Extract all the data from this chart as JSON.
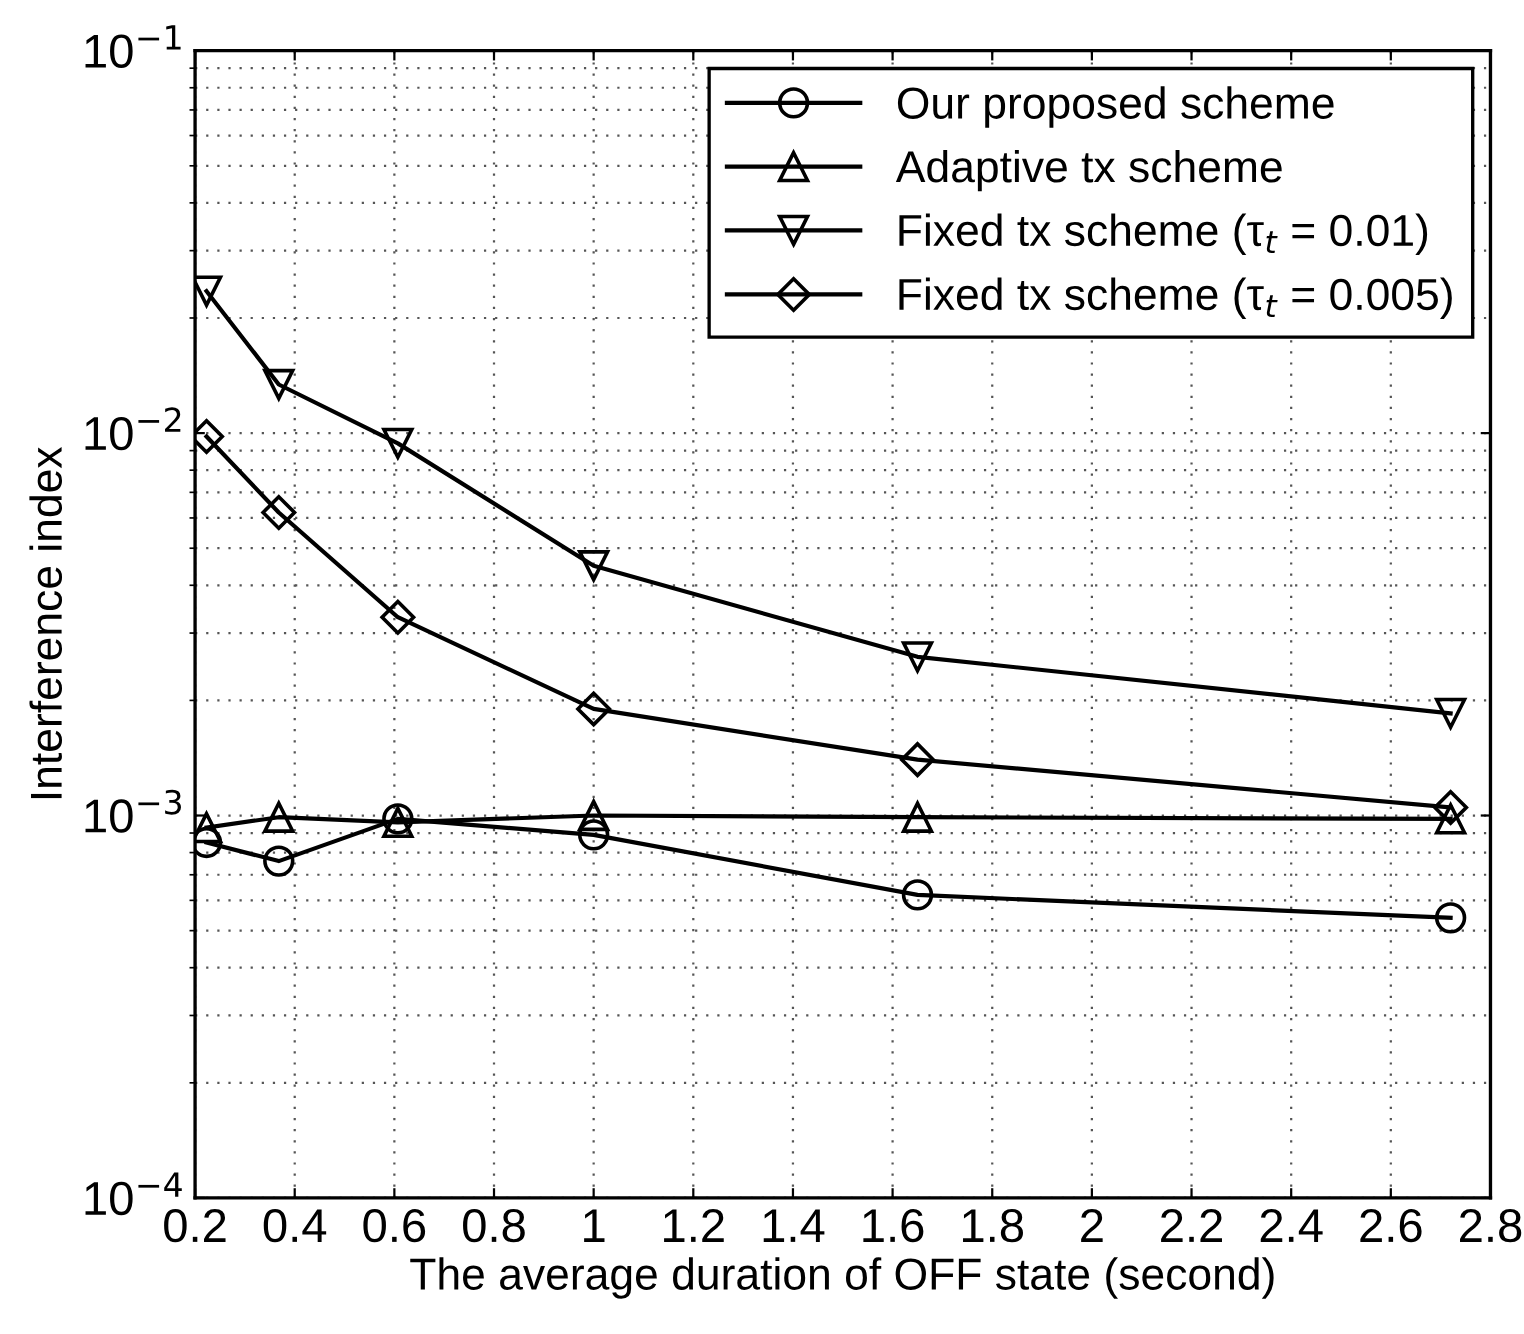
{
  "chart_data": {
    "type": "line",
    "xlabel": "The average duration of OFF state (second)",
    "ylabel": "Interference index",
    "x": [
      0.223,
      0.368,
      0.607,
      1.0,
      1.65,
      2.72
    ],
    "series": [
      {
        "name": "Our proposed scheme",
        "color": "#000000",
        "marker": "circle",
        "values": [
          0.00085,
          0.00076,
          0.00098,
          0.00089,
          0.00062,
          0.00054
        ]
      },
      {
        "name": "Adaptive tx scheme",
        "color": "#000000",
        "marker": "triangle",
        "values": [
          0.00093,
          0.00099,
          0.00096,
          0.001,
          0.00099,
          0.00098
        ]
      },
      {
        "name": "Fixed tx scheme (τ$_{t}$ = 0.01)",
        "color": "#000000",
        "marker": "triangle_down",
        "values": [
          0.0235,
          0.0134,
          0.0094,
          0.0045,
          0.0026,
          0.00185
        ]
      },
      {
        "name": "Fixed tx scheme (τ$_{t}$ = 0.005)",
        "color": "#000000",
        "marker": "diamond",
        "values": [
          0.0098,
          0.0062,
          0.0033,
          0.0019,
          0.0014,
          0.00105
        ]
      }
    ],
    "log": "y",
    "xlim": [
      0.2,
      2.8
    ],
    "xticks": [
      0.2,
      0.4,
      0.6,
      0.8,
      1,
      1.2,
      1.4,
      1.6,
      1.8,
      2,
      2.2,
      2.4,
      2.6,
      2.8
    ],
    "ylim": [
      0.0001,
      0.1
    ],
    "yticks": [
      {
        "value": 0.0001,
        "label": "10$^{−4}$"
      },
      {
        "value": 0.001,
        "label": "10$^{−3}$"
      },
      {
        "value": 0.01,
        "label": "10$^{−2}$"
      },
      {
        "value": 0.1,
        "label": "10$^{−1}$"
      }
    ],
    "grid": true,
    "legend": "top right",
    "line_style": "solid"
  }
}
